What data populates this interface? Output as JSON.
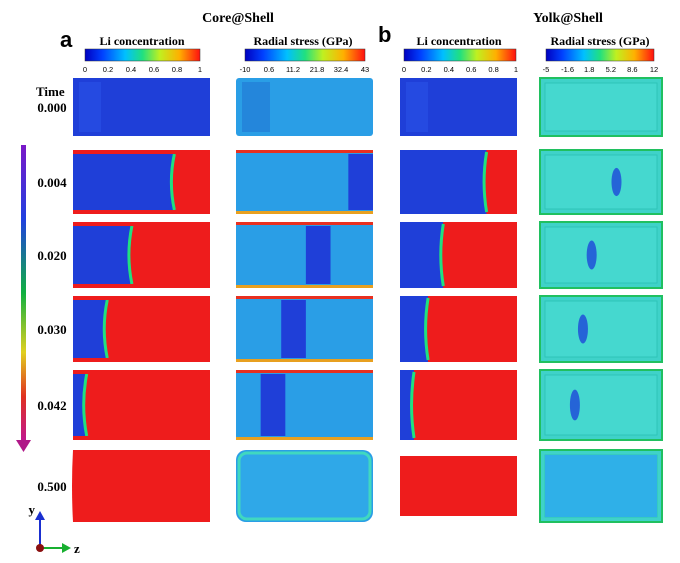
{
  "figure": {
    "panel_a": {
      "letter": "a",
      "title": "Core@Shell",
      "colorbar_li": {
        "title": "Li concentration",
        "ticks": [
          "0",
          "0.2",
          "0.4",
          "0.6",
          "0.8",
          "1"
        ]
      },
      "colorbar_stress": {
        "title": "Radial stress (GPa)",
        "ticks": [
          "-10",
          "0.6",
          "11.2",
          "21.8",
          "32.4",
          "43"
        ]
      }
    },
    "panel_b": {
      "letter": "b",
      "title": "Yolk@Shell",
      "colorbar_li": {
        "title": "Li concentration",
        "ticks": [
          "0",
          "0.2",
          "0.4",
          "0.6",
          "0.8",
          "1"
        ]
      },
      "colorbar_stress": {
        "title": "Radial stress (GPa)",
        "ticks": [
          "-5",
          "-1.6",
          "1.8",
          "5.2",
          "8.6",
          "12"
        ]
      }
    },
    "time_label": "Time",
    "times": [
      "0.000",
      "0.004",
      "0.020",
      "0.030",
      "0.042",
      "0.500"
    ],
    "front_fraction_core_shell": [
      0.0,
      0.74,
      0.43,
      0.25,
      0.1,
      0.0
    ],
    "front_fraction_yolk_shell": [
      0.0,
      0.74,
      0.37,
      0.24,
      0.12,
      0.0
    ],
    "axis_labels": {
      "y": "y",
      "z": "z"
    },
    "colors": {
      "li_low": "#1f3fd8",
      "li_high": "#ee1c1c",
      "stress_mid": "#2a9ee6",
      "stress_low": "#1f3fd8",
      "yolk_stress": "#3fd2c9",
      "arrow_top": "#8a1fbf",
      "arrow_bottom": "#c21fa0"
    }
  }
}
